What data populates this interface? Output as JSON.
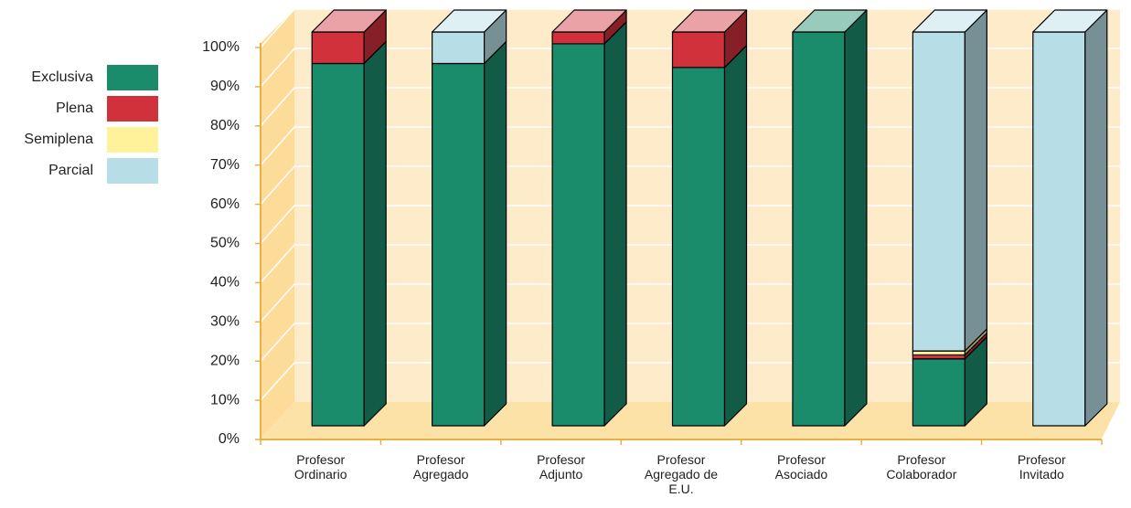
{
  "chart_data": {
    "type": "bar3d_stacked",
    "categories": [
      "Profesor Ordinario",
      "Profesor Agregado",
      "Profesor Adjunto",
      "Profesor Agregado de E.U.",
      "Profesor Asociado",
      "Profesor Colaborador",
      "Profesor Invitado"
    ],
    "series": [
      {
        "name": "Exclusiva",
        "color": "#1b8c6b",
        "values": [
          92,
          92,
          97,
          91,
          100,
          17,
          0
        ]
      },
      {
        "name": "Plena",
        "color": "#d0313a",
        "values": [
          8,
          0,
          3,
          9,
          0,
          1,
          0
        ]
      },
      {
        "name": "Semiplena",
        "color": "#fff29a",
        "values": [
          0,
          0,
          0,
          0,
          0,
          1,
          0
        ]
      },
      {
        "name": "Parcial",
        "color": "#b7dde6",
        "values": [
          0,
          8,
          0,
          0,
          0,
          81,
          100
        ]
      }
    ],
    "ylim": [
      0,
      100
    ],
    "yticks": [
      {
        "value": 0,
        "label": "0%"
      },
      {
        "value": 10,
        "label": "10%"
      },
      {
        "value": 20,
        "label": "20%"
      },
      {
        "value": 30,
        "label": "30%"
      },
      {
        "value": 40,
        "label": "40%"
      },
      {
        "value": 50,
        "label": "50%"
      },
      {
        "value": 60,
        "label": "60%"
      },
      {
        "value": 70,
        "label": "70%"
      },
      {
        "value": 80,
        "label": "80%"
      },
      {
        "value": 90,
        "label": "90%"
      },
      {
        "value": 100,
        "label": "100%"
      }
    ],
    "grid": true,
    "legend": "left"
  }
}
